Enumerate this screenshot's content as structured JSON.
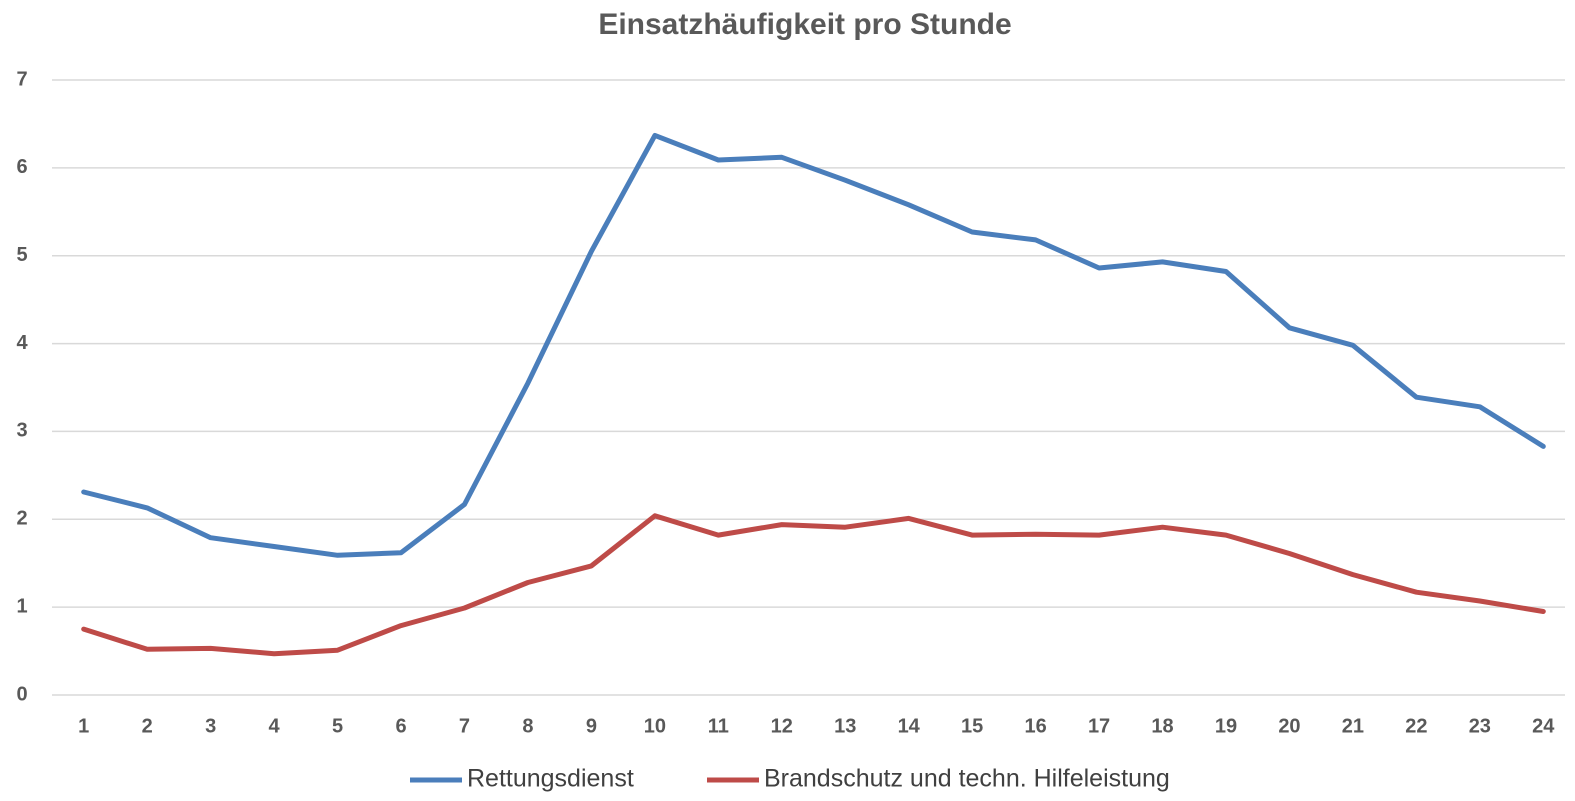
{
  "chart_data": {
    "type": "line",
    "title": "Einsatzhäufigkeit pro Stunde",
    "categories": [
      "1",
      "2",
      "3",
      "4",
      "5",
      "6",
      "7",
      "8",
      "9",
      "10",
      "11",
      "12",
      "13",
      "14",
      "15",
      "16",
      "17",
      "18",
      "19",
      "20",
      "21",
      "22",
      "23",
      "24"
    ],
    "series": [
      {
        "name": "Rettungsdienst",
        "color": "#4a7ebb",
        "values": [
          2.31,
          2.13,
          1.79,
          1.69,
          1.59,
          1.62,
          2.17,
          3.55,
          5.05,
          6.37,
          6.09,
          6.12,
          5.86,
          5.58,
          5.27,
          5.18,
          4.86,
          4.93,
          4.82,
          4.18,
          3.98,
          3.39,
          3.28,
          2.83
        ]
      },
      {
        "name": "Brandschutz und techn. Hilfeleistung",
        "color": "#be4b48",
        "values": [
          0.75,
          0.52,
          0.53,
          0.47,
          0.51,
          0.79,
          0.99,
          1.28,
          1.47,
          2.04,
          1.82,
          1.94,
          1.91,
          2.01,
          1.82,
          1.83,
          1.82,
          1.91,
          1.82,
          1.61,
          1.37,
          1.17,
          1.07,
          0.95
        ]
      }
    ],
    "ylim": [
      0,
      7
    ],
    "yticks": [
      0,
      1,
      2,
      3,
      4,
      5,
      6,
      7
    ],
    "grid": true,
    "legend": "bottom"
  }
}
